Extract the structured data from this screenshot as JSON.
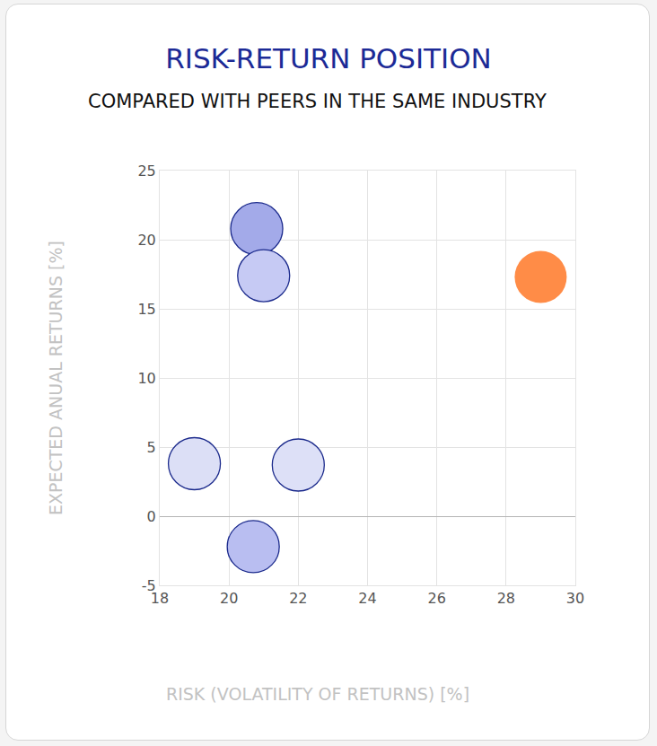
{
  "chart_data": {
    "type": "scatter",
    "title": "RISK-RETURN POSITION",
    "subtitle": "COMPARED WITH PEERS IN THE SAME INDUSTRY",
    "x_label": "RISK (VOLATILITY OF RETURNS) [%]",
    "y_label": "EXPECTED ANUAL RETURNS [%]",
    "x": [
      20.8,
      21.0,
      19.0,
      22.0,
      20.7,
      29.0
    ],
    "values": [
      20.8,
      17.4,
      3.8,
      3.7,
      -2.2,
      17.3
    ],
    "colors": [
      "#a3aae9",
      "#c6caf4",
      "#dcdff6",
      "#dde0f7",
      "#b9bef1",
      "#ff8c47"
    ],
    "marker": "circle",
    "xlim": [
      18,
      30
    ],
    "xticks": [
      18,
      20,
      22,
      24,
      26,
      28,
      30
    ],
    "ylim": [
      -5,
      25
    ],
    "yticks": [
      -5,
      0,
      5,
      10,
      15,
      20,
      25
    ],
    "grid": true
  }
}
